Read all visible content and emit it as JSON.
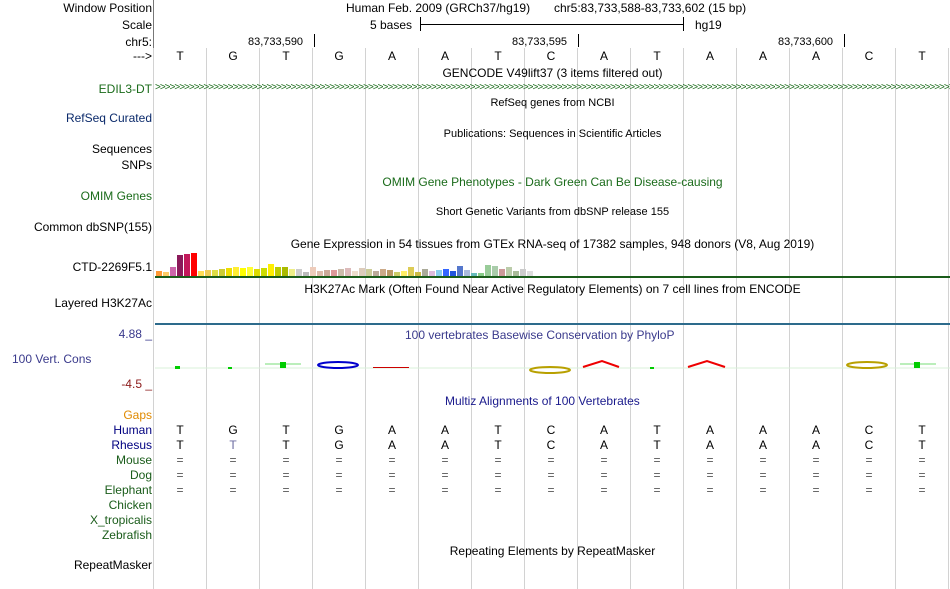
{
  "header": {
    "window_position_label": "Window Position",
    "scale_label": "Scale",
    "chrom_label": "chr5:",
    "strand_label": "--->",
    "assembly_title": "Human Feb. 2009 (GRCh37/hg19)",
    "position": "chr5:83,733,588-83,733,602 (15 bp)",
    "scale_text": "5 bases",
    "db": "hg19",
    "ticks": [
      "83,733,590",
      "83,733,595",
      "83,733,600"
    ]
  },
  "bases": [
    "T",
    "G",
    "T",
    "G",
    "A",
    "A",
    "T",
    "C",
    "A",
    "T",
    "A",
    "A",
    "A",
    "C",
    "T"
  ],
  "tracks": {
    "gencode": {
      "title": "GENCODE V49lift37 (3 items filtered out)",
      "label": "EDIL3-DT",
      "color": "#1a6b1a"
    },
    "refseq": {
      "title": "RefSeq genes from NCBI",
      "label": "RefSeq Curated"
    },
    "publications": {
      "title": "Publications: Sequences in Scientific Articles",
      "label1": "Sequences",
      "label2": "SNPs"
    },
    "omim": {
      "title": "OMIM Gene Phenotypes - Dark Green Can Be Disease-causing",
      "label": "OMIM Genes"
    },
    "dbsnp": {
      "title": "Short Genetic Variants from dbSNP release 155",
      "label": "Common dbSNP(155)"
    },
    "gtex": {
      "title": "Gene Expression in 54 tissues from GTEx RNA-seq of 17382 samples, 948 donors (V8, Aug 2019)",
      "label": "CTD-2269F5.1",
      "bar_heights": [
        5,
        4,
        9,
        21,
        22,
        23,
        5,
        6,
        6,
        7,
        8,
        9,
        8,
        9,
        7,
        8,
        12,
        9,
        9,
        7,
        7,
        4,
        9,
        5,
        6,
        6,
        7,
        8,
        5,
        8,
        7,
        5,
        7,
        6,
        4,
        5,
        9,
        4,
        7,
        5,
        6,
        7,
        5,
        10,
        6,
        3,
        3,
        11,
        10,
        7,
        9,
        5,
        7,
        5
      ],
      "bar_colors": [
        "#ff9933",
        "#ffcc66",
        "#cc66aa",
        "#8b1a5a",
        "#c2185b",
        "#ff0000",
        "#ffdd55",
        "#eecc55",
        "#dddd44",
        "#cccc33",
        "#eedd00",
        "#ffee33",
        "#ffff00",
        "#ffff33",
        "#dddd00",
        "#ccdd00",
        "#ffee00",
        "#bbcc00",
        "#aabb00",
        "#eeee88",
        "#cccccc",
        "#bbbbbb",
        "#eeccbb",
        "#ddbbaa",
        "#ccaa99",
        "#dd9999",
        "#ccbbaa",
        "#ddbbbb",
        "#eeddcc",
        "#ddccbb",
        "#cccc99",
        "#bbaa99",
        "#ccaa88",
        "#bb9966",
        "#cccc66",
        "#ffee66",
        "#ddcc55",
        "#ccbb44",
        "#aaaa99",
        "#ddbbdd",
        "#88ccee",
        "#3366ff",
        "#2255dd",
        "#5577cc",
        "#aabbdd",
        "#66bbbb",
        "#88cc88",
        "#99cc99",
        "#aaccaa",
        "#cc9999",
        "#bbccaa",
        "#aabb99",
        "#cccccc",
        "#dddddd"
      ]
    },
    "h3k27ac": {
      "title": "H3K27Ac Mark (Often Found Near Active Regulatory Elements) on 7 cell lines from ENCODE",
      "label": "Layered H3K27Ac"
    },
    "phylop": {
      "title": "100 vertebrates Basewise Conservation by PhyloP",
      "label": "100 Vert. Cons",
      "max": "4.88 _",
      "min": "-4.5 _"
    },
    "multiz": {
      "title": "Multiz Alignments of 100 Vertebrates",
      "gaps_label": "Gaps",
      "species": [
        {
          "name": "Human",
          "row": [
            "T",
            "G",
            "T",
            "G",
            "A",
            "A",
            "T",
            "C",
            "A",
            "T",
            "A",
            "A",
            "A",
            "C",
            "T"
          ]
        },
        {
          "name": "Rhesus",
          "row": [
            "T",
            "T",
            "T",
            "G",
            "A",
            "A",
            "T",
            "C",
            "A",
            "T",
            "A",
            "A",
            "A",
            "C",
            "T"
          ]
        },
        {
          "name": "Mouse",
          "row": [
            "=",
            "=",
            "=",
            "=",
            "=",
            "=",
            "=",
            "=",
            "=",
            "=",
            "=",
            "=",
            "=",
            "=",
            "="
          ]
        },
        {
          "name": "Dog",
          "row": [
            "=",
            "=",
            "=",
            "=",
            "=",
            "=",
            "=",
            "=",
            "=",
            "=",
            "=",
            "=",
            "=",
            "=",
            "="
          ]
        },
        {
          "name": "Elephant",
          "row": [
            "=",
            "=",
            "=",
            "=",
            "=",
            "=",
            "=",
            "=",
            "=",
            "=",
            "=",
            "=",
            "=",
            "=",
            "="
          ]
        },
        {
          "name": "Chicken",
          "row": [
            "",
            "",
            "",
            "",
            "",
            "",
            "",
            "",
            "",
            "",
            "",
            "",
            "",
            "",
            ""
          ]
        },
        {
          "name": "X_tropicalis",
          "row": [
            "",
            "",
            "",
            "",
            "",
            "",
            "",
            "",
            "",
            "",
            "",
            "",
            "",
            "",
            ""
          ]
        },
        {
          "name": "Zebrafish",
          "row": [
            "",
            "",
            "",
            "",
            "",
            "",
            "",
            "",
            "",
            "",
            "",
            "",
            "",
            "",
            ""
          ]
        }
      ]
    },
    "repeatmasker": {
      "title": "Repeating Elements by RepeatMasker",
      "label": "RepeatMasker"
    }
  }
}
